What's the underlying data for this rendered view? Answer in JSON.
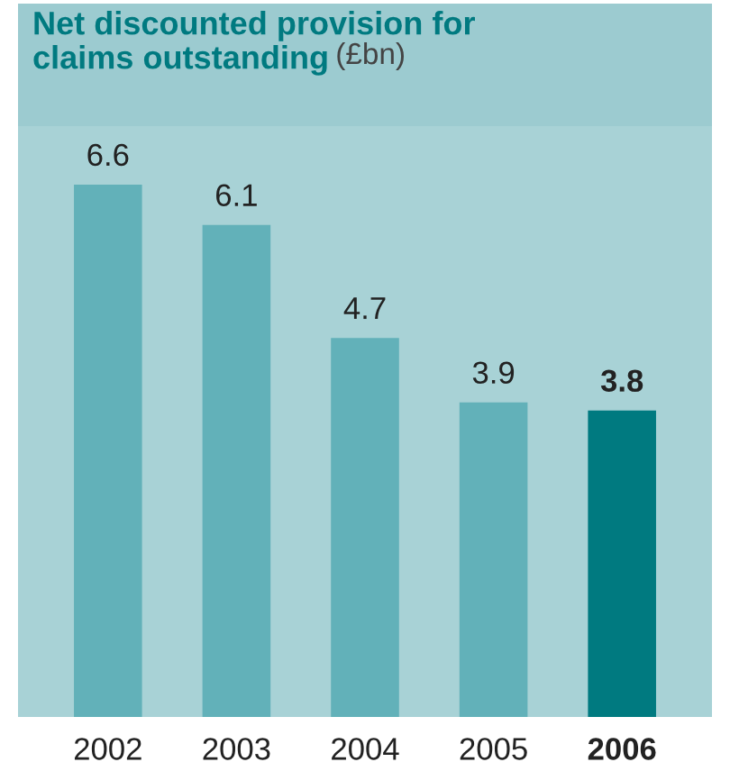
{
  "chart_data": {
    "type": "bar",
    "title": "Net discounted provision for claims outstanding",
    "ylabel": "(£bn)",
    "categories": [
      "2002",
      "2003",
      "2004",
      "2005",
      "2006"
    ],
    "values": [
      6.6,
      6.1,
      4.7,
      3.9,
      3.8
    ],
    "colors": [
      "#62b1b9",
      "#62b1b9",
      "#62b1b9",
      "#62b1b9",
      "#007a80"
    ],
    "data_labels": true,
    "grid": false,
    "legend": false
  }
}
